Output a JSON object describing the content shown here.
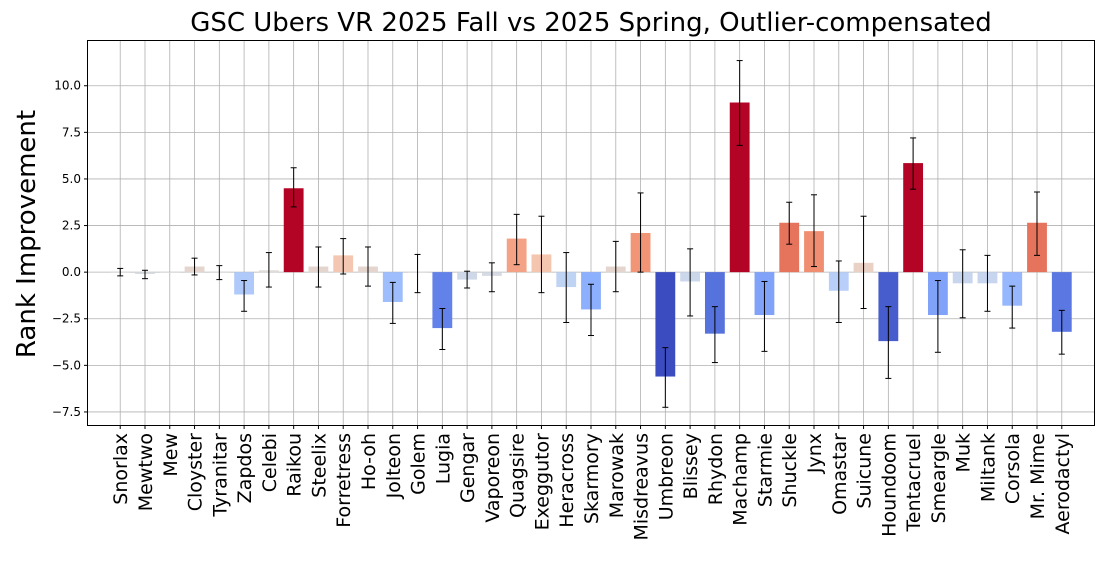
{
  "chart_data": {
    "type": "bar",
    "title": "GSC Ubers VR 2025 Fall vs 2025 Spring, Outlier-compensated",
    "xlabel": "",
    "ylabel": "Rank Improvement",
    "ylim": [
      -8.2,
      12.4
    ],
    "yticks": [
      -7.5,
      -5.0,
      -2.5,
      0.0,
      2.5,
      5.0,
      7.5,
      10.0
    ],
    "ytick_labels": [
      "−7.5",
      "−5.0",
      "−2.5",
      "0.0",
      "2.5",
      "5.0",
      "7.5",
      "10.0"
    ],
    "grid": true,
    "colormap": "coolwarm",
    "categories": [
      "Snorlax",
      "Mewtwo",
      "Mew",
      "Cloyster",
      "Tyranitar",
      "Zapdos",
      "Celebi",
      "Raikou",
      "Steelix",
      "Forretress",
      "Ho-oh",
      "Jolteon",
      "Golem",
      "Lugia",
      "Gengar",
      "Vaporeon",
      "Quagsire",
      "Exeggutor",
      "Heracross",
      "Skarmory",
      "Marowak",
      "Misdreavus",
      "Umbreon",
      "Blissey",
      "Rhydon",
      "Machamp",
      "Starmie",
      "Shuckle",
      "Jynx",
      "Omastar",
      "Suicune",
      "Houndoom",
      "Tentacruel",
      "Smeargle",
      "Muk",
      "Miltank",
      "Corsola",
      "Mr. Mime",
      "Aerodactyl"
    ],
    "values": [
      0.0,
      -0.1,
      0.0,
      0.3,
      0.0,
      -1.2,
      0.1,
      4.5,
      0.3,
      0.9,
      0.3,
      -1.6,
      0.0,
      -3.0,
      -0.4,
      -0.2,
      1.8,
      0.95,
      -0.8,
      -2.0,
      0.3,
      2.1,
      -5.6,
      -0.5,
      -3.3,
      9.1,
      -2.3,
      2.65,
      2.2,
      -1.0,
      0.5,
      -3.7,
      5.85,
      -2.3,
      -0.6,
      -0.6,
      -1.8,
      2.65,
      -3.2
    ],
    "error_low": [
      -0.2,
      -0.35,
      0.0,
      -0.15,
      -0.4,
      -2.1,
      -0.8,
      3.5,
      -0.8,
      -0.1,
      -0.75,
      -2.75,
      -1.1,
      -4.15,
      -0.85,
      -1.05,
      0.4,
      -1.1,
      -2.7,
      -3.4,
      -1.05,
      0.0,
      -7.25,
      -2.35,
      -4.85,
      6.8,
      -4.25,
      1.5,
      0.3,
      -2.7,
      -1.95,
      -5.7,
      4.45,
      -4.3,
      -2.45,
      -2.1,
      -3.0,
      0.9,
      -4.4
    ],
    "error_high": [
      0.2,
      0.1,
      0.0,
      0.75,
      0.35,
      -0.45,
      1.05,
      5.6,
      1.35,
      1.8,
      1.35,
      -0.55,
      0.95,
      -1.95,
      0.05,
      0.5,
      3.1,
      3.0,
      1.05,
      -0.65,
      1.65,
      4.25,
      -4.05,
      1.25,
      -1.85,
      11.35,
      -0.5,
      3.75,
      4.15,
      0.6,
      3.0,
      -1.85,
      7.2,
      -0.45,
      1.2,
      0.9,
      -0.75,
      4.3,
      -2.05
    ]
  }
}
